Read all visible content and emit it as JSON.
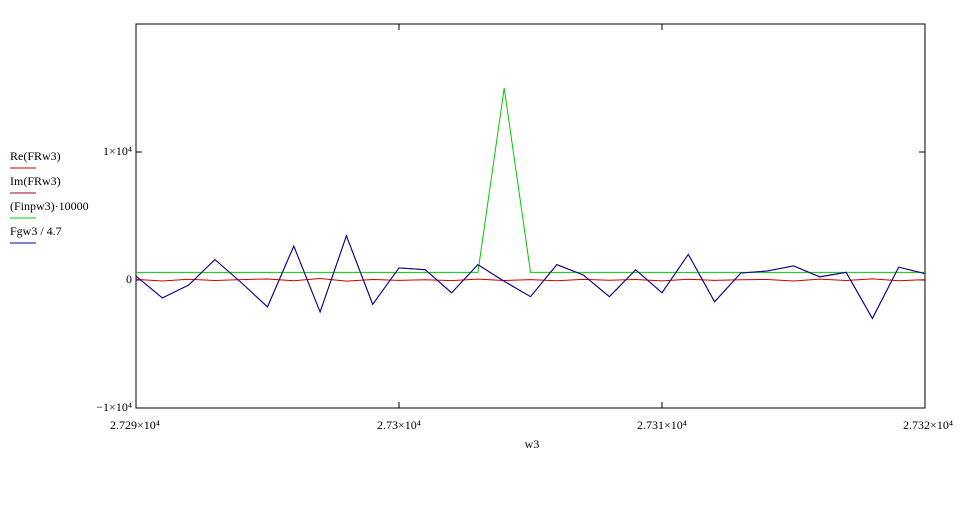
{
  "chart_data": {
    "type": "line",
    "x_label": "w3",
    "x": [
      27290,
      27291,
      27292,
      27293,
      27294,
      27295,
      27296,
      27297,
      27298,
      27299,
      27300,
      27301,
      27302,
      27303,
      27304,
      27305,
      27306,
      27307,
      27308,
      27309,
      27310,
      27311,
      27312,
      27313,
      27314,
      27315,
      27316,
      27317,
      27318,
      27319,
      27320
    ],
    "series": [
      {
        "name": "Re(FRw3)",
        "color": "#cc0000",
        "values": [
          50,
          -80,
          60,
          -40,
          30,
          80,
          -60,
          120,
          -90,
          40,
          -30,
          20,
          -50,
          70,
          -40,
          30,
          -60,
          50,
          -20,
          40,
          -70,
          60,
          -30,
          20,
          40,
          -80,
          70,
          -40,
          90,
          -60,
          30
        ]
      },
      {
        "name": "Im(FRw3)",
        "color": "#990033",
        "values": [
          300,
          -1400,
          -400,
          1600,
          -200,
          -2100,
          2650,
          -2500,
          3450,
          -1900,
          950,
          800,
          -1000,
          1200,
          -100,
          -1300,
          1200,
          400,
          -1300,
          800,
          -1000,
          2000,
          -1700,
          550,
          700,
          1100,
          250,
          600,
          -3000,
          1000,
          500
        ]
      },
      {
        "name": "(Finpw3)·10000",
        "color": "#00cc00",
        "values": [
          600,
          600,
          600,
          600,
          600,
          600,
          600,
          600,
          600,
          600,
          600,
          600,
          600,
          600,
          15000,
          600,
          600,
          600,
          600,
          600,
          600,
          600,
          600,
          600,
          600,
          600,
          600,
          600,
          600,
          600,
          600
        ]
      },
      {
        "name": "Fgw3 / 4.7",
        "color": "#000099",
        "values": [
          300,
          -1400,
          -400,
          1600,
          -200,
          -2100,
          2650,
          -2500,
          3450,
          -1900,
          950,
          800,
          -1000,
          1200,
          -100,
          -1300,
          1200,
          400,
          -1300,
          800,
          -1000,
          2000,
          -1700,
          550,
          700,
          1100,
          250,
          600,
          -3000,
          1000,
          500
        ]
      }
    ],
    "xlim": [
      27290,
      27320
    ],
    "xticks": [
      {
        "value": 27290,
        "label": "2.729×10⁴"
      },
      {
        "value": 27300,
        "label": "2.73×10⁴"
      },
      {
        "value": 27310,
        "label": "2.731×10⁴"
      },
      {
        "value": 27320,
        "label": "2.732×10⁴"
      }
    ],
    "ylim": [
      -10000,
      20000
    ],
    "yticks": [
      {
        "value": -10000,
        "label": "−1×10⁴"
      },
      0,
      {
        "value": 10000,
        "label": "1×10⁴"
      }
    ]
  }
}
